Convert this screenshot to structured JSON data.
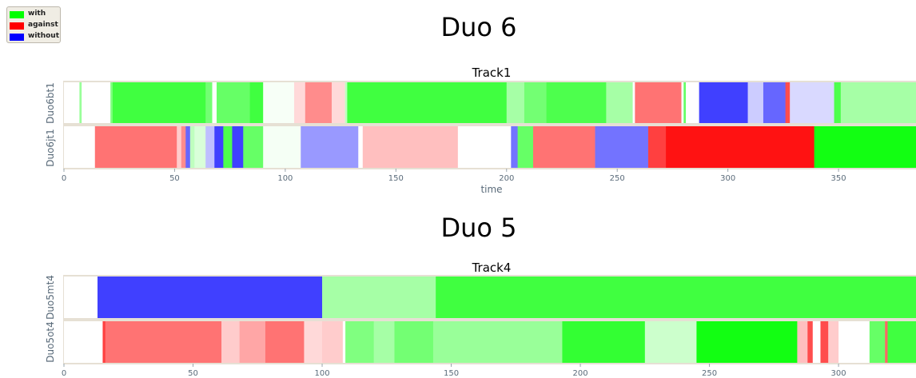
{
  "legend": {
    "items": [
      {
        "label": "with",
        "color": "#00ff00"
      },
      {
        "label": "against",
        "color": "#ff0000"
      },
      {
        "label": "without",
        "color": "#0000ff"
      }
    ]
  },
  "chart_data": [
    {
      "type": "timeline",
      "title": "Duo 6",
      "subtitle": "Track1",
      "xlabel": "time",
      "xlim": [
        0,
        385
      ],
      "xticks": [
        0,
        50,
        100,
        150,
        200,
        250,
        300,
        350
      ],
      "colors": {
        "with": "#00ff00",
        "against": "#ff0000",
        "without": "#0000ff"
      },
      "rows": [
        {
          "name": "Duo6bt1",
          "segments": [
            {
              "start": 0,
              "end": 7,
              "cat": "with",
              "intensity": 0.0
            },
            {
              "start": 7,
              "end": 8,
              "cat": "with",
              "intensity": 0.4
            },
            {
              "start": 8,
              "end": 21,
              "cat": "with",
              "intensity": 0.0
            },
            {
              "start": 21,
              "end": 22,
              "cat": "with",
              "intensity": 0.5
            },
            {
              "start": 22,
              "end": 64,
              "cat": "with",
              "intensity": 0.75
            },
            {
              "start": 64,
              "end": 67,
              "cat": "with",
              "intensity": 0.55
            },
            {
              "start": 67,
              "end": 69,
              "cat": "with",
              "intensity": 0.0
            },
            {
              "start": 69,
              "end": 84,
              "cat": "with",
              "intensity": 0.6
            },
            {
              "start": 84,
              "end": 90,
              "cat": "with",
              "intensity": 0.75
            },
            {
              "start": 90,
              "end": 104,
              "cat": "with",
              "intensity": 0.03
            },
            {
              "start": 104,
              "end": 109,
              "cat": "against",
              "intensity": 0.15
            },
            {
              "start": 109,
              "end": 121,
              "cat": "against",
              "intensity": 0.45
            },
            {
              "start": 121,
              "end": 127,
              "cat": "against",
              "intensity": 0.15
            },
            {
              "start": 127,
              "end": 128,
              "cat": "with",
              "intensity": 0.25
            },
            {
              "start": 128,
              "end": 200,
              "cat": "with",
              "intensity": 0.75
            },
            {
              "start": 200,
              "end": 208,
              "cat": "with",
              "intensity": 0.35
            },
            {
              "start": 208,
              "end": 218,
              "cat": "with",
              "intensity": 0.55
            },
            {
              "start": 218,
              "end": 245,
              "cat": "with",
              "intensity": 0.7
            },
            {
              "start": 245,
              "end": 257,
              "cat": "with",
              "intensity": 0.35
            },
            {
              "start": 257,
              "end": 258,
              "cat": "with",
              "intensity": 0.0
            },
            {
              "start": 258,
              "end": 279,
              "cat": "against",
              "intensity": 0.55
            },
            {
              "start": 279,
              "end": 280,
              "cat": "with",
              "intensity": 0.0
            },
            {
              "start": 280,
              "end": 281,
              "cat": "with",
              "intensity": 0.6
            },
            {
              "start": 281,
              "end": 287,
              "cat": "with",
              "intensity": 0.0
            },
            {
              "start": 287,
              "end": 309,
              "cat": "without",
              "intensity": 0.75
            },
            {
              "start": 309,
              "end": 316,
              "cat": "without",
              "intensity": 0.2
            },
            {
              "start": 316,
              "end": 326,
              "cat": "without",
              "intensity": 0.6
            },
            {
              "start": 326,
              "end": 328,
              "cat": "against",
              "intensity": 0.7
            },
            {
              "start": 328,
              "end": 348,
              "cat": "without",
              "intensity": 0.15
            },
            {
              "start": 348,
              "end": 351,
              "cat": "with",
              "intensity": 0.7
            },
            {
              "start": 351,
              "end": 385,
              "cat": "with",
              "intensity": 0.35
            }
          ]
        },
        {
          "name": "Duo6jt1",
          "segments": [
            {
              "start": 0,
              "end": 14,
              "cat": "with",
              "intensity": 0.0
            },
            {
              "start": 14,
              "end": 51,
              "cat": "against",
              "intensity": 0.55
            },
            {
              "start": 51,
              "end": 53,
              "cat": "against",
              "intensity": 0.2
            },
            {
              "start": 53,
              "end": 55,
              "cat": "against",
              "intensity": 0.45
            },
            {
              "start": 55,
              "end": 57,
              "cat": "without",
              "intensity": 0.6
            },
            {
              "start": 57,
              "end": 59,
              "cat": "with",
              "intensity": 0.25
            },
            {
              "start": 59,
              "end": 64,
              "cat": "with",
              "intensity": 0.15
            },
            {
              "start": 64,
              "end": 68,
              "cat": "without",
              "intensity": 0.25
            },
            {
              "start": 68,
              "end": 72,
              "cat": "without",
              "intensity": 0.75
            },
            {
              "start": 72,
              "end": 76,
              "cat": "with",
              "intensity": 0.7
            },
            {
              "start": 76,
              "end": 81,
              "cat": "without",
              "intensity": 0.75
            },
            {
              "start": 81,
              "end": 90,
              "cat": "with",
              "intensity": 0.6
            },
            {
              "start": 90,
              "end": 107,
              "cat": "with",
              "intensity": 0.04
            },
            {
              "start": 107,
              "end": 133,
              "cat": "without",
              "intensity": 0.4
            },
            {
              "start": 133,
              "end": 135,
              "cat": "with",
              "intensity": 0.0
            },
            {
              "start": 135,
              "end": 178,
              "cat": "against",
              "intensity": 0.25
            },
            {
              "start": 178,
              "end": 202,
              "cat": "with",
              "intensity": 0.0
            },
            {
              "start": 202,
              "end": 205,
              "cat": "without",
              "intensity": 0.55
            },
            {
              "start": 205,
              "end": 212,
              "cat": "with",
              "intensity": 0.6
            },
            {
              "start": 212,
              "end": 240,
              "cat": "against",
              "intensity": 0.55
            },
            {
              "start": 240,
              "end": 264,
              "cat": "without",
              "intensity": 0.55
            },
            {
              "start": 264,
              "end": 272,
              "cat": "against",
              "intensity": 0.75
            },
            {
              "start": 272,
              "end": 339,
              "cat": "against",
              "intensity": 0.93
            },
            {
              "start": 339,
              "end": 385,
              "cat": "with",
              "intensity": 0.93
            }
          ]
        }
      ]
    },
    {
      "type": "timeline",
      "title": "Duo 5",
      "subtitle": "Track4",
      "xlabel": "",
      "xlim": [
        0,
        330
      ],
      "xticks": [
        0,
        50,
        100,
        150,
        200,
        250,
        300
      ],
      "colors": {
        "with": "#00ff00",
        "against": "#ff0000",
        "without": "#0000ff"
      },
      "rows": [
        {
          "name": "Duo5mt4",
          "segments": [
            {
              "start": 0,
              "end": 13,
              "cat": "with",
              "intensity": 0.0
            },
            {
              "start": 13,
              "end": 100,
              "cat": "without",
              "intensity": 0.75
            },
            {
              "start": 100,
              "end": 144,
              "cat": "with",
              "intensity": 0.35
            },
            {
              "start": 144,
              "end": 330,
              "cat": "with",
              "intensity": 0.75
            }
          ]
        },
        {
          "name": "Duo5ot4",
          "segments": [
            {
              "start": 0,
              "end": 15,
              "cat": "with",
              "intensity": 0.0
            },
            {
              "start": 15,
              "end": 16,
              "cat": "against",
              "intensity": 0.75
            },
            {
              "start": 16,
              "end": 61,
              "cat": "against",
              "intensity": 0.55
            },
            {
              "start": 61,
              "end": 68,
              "cat": "against",
              "intensity": 0.2
            },
            {
              "start": 68,
              "end": 78,
              "cat": "against",
              "intensity": 0.35
            },
            {
              "start": 78,
              "end": 93,
              "cat": "against",
              "intensity": 0.55
            },
            {
              "start": 93,
              "end": 100,
              "cat": "against",
              "intensity": 0.15
            },
            {
              "start": 100,
              "end": 108,
              "cat": "against",
              "intensity": 0.2
            },
            {
              "start": 108,
              "end": 109,
              "cat": "with",
              "intensity": 0.0
            },
            {
              "start": 109,
              "end": 120,
              "cat": "with",
              "intensity": 0.5
            },
            {
              "start": 120,
              "end": 128,
              "cat": "with",
              "intensity": 0.35
            },
            {
              "start": 128,
              "end": 143,
              "cat": "with",
              "intensity": 0.55
            },
            {
              "start": 143,
              "end": 193,
              "cat": "with",
              "intensity": 0.4
            },
            {
              "start": 193,
              "end": 225,
              "cat": "with",
              "intensity": 0.8
            },
            {
              "start": 225,
              "end": 245,
              "cat": "with",
              "intensity": 0.2
            },
            {
              "start": 245,
              "end": 284,
              "cat": "with",
              "intensity": 0.93
            },
            {
              "start": 284,
              "end": 288,
              "cat": "against",
              "intensity": 0.25
            },
            {
              "start": 288,
              "end": 290,
              "cat": "against",
              "intensity": 0.7
            },
            {
              "start": 290,
              "end": 293,
              "cat": "with",
              "intensity": 0.0
            },
            {
              "start": 293,
              "end": 296,
              "cat": "against",
              "intensity": 0.7
            },
            {
              "start": 296,
              "end": 300,
              "cat": "against",
              "intensity": 0.2
            },
            {
              "start": 300,
              "end": 312,
              "cat": "with",
              "intensity": 0.0
            },
            {
              "start": 312,
              "end": 318,
              "cat": "with",
              "intensity": 0.6
            },
            {
              "start": 318,
              "end": 319,
              "cat": "against",
              "intensity": 0.6
            },
            {
              "start": 319,
              "end": 330,
              "cat": "with",
              "intensity": 0.75
            }
          ]
        }
      ]
    }
  ]
}
